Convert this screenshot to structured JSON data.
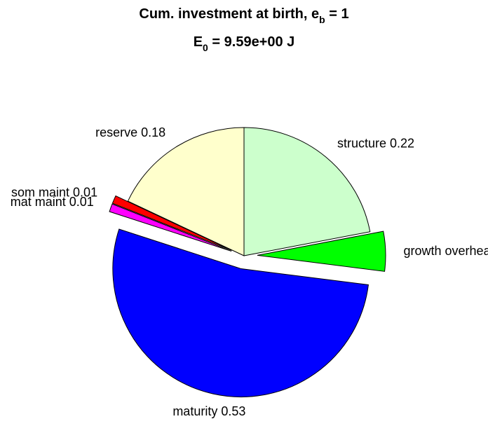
{
  "chart_data": {
    "type": "pie",
    "title": [
      [
        "Cum. investment at birth, e",
        "b",
        " = 1"
      ],
      [
        "E",
        "0",
        " = 9.59e+00 J"
      ]
    ],
    "categories": [
      "structure",
      "growth overhead",
      "maturity",
      "mat maint",
      "som maint",
      "reserve"
    ],
    "values": [
      0.22,
      0.05,
      0.53,
      0.01,
      0.01,
      0.18
    ],
    "colors": [
      "#ccffcc",
      "#00ff00",
      "#0000ff",
      "#ff00ff",
      "#ff0000",
      "#ffffcc"
    ],
    "explode": [
      false,
      true,
      true,
      true,
      true,
      false
    ],
    "start_angle": 90,
    "direction": "clockwise"
  }
}
